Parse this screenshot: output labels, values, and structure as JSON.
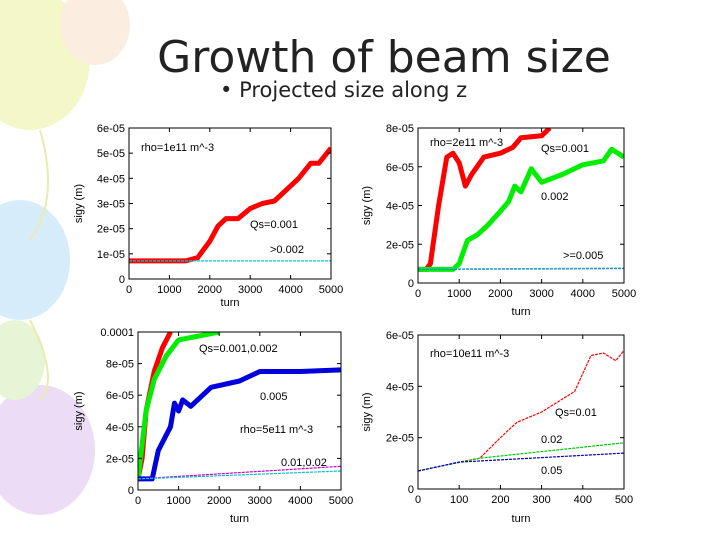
{
  "slide": {
    "title": "Growth of beam size",
    "bullet": "Projected size along z"
  },
  "chart_data": [
    {
      "type": "line",
      "xlabel": "turn",
      "ylabel": "sigy (m)",
      "xlim": [
        0,
        5000
      ],
      "ylim": [
        0,
        6e-05
      ],
      "xticks": [
        "0",
        "1000",
        "2000",
        "3000",
        "4000",
        "5000"
      ],
      "yticks": [
        "0",
        "1e-05",
        "2e-05",
        "3e-05",
        "4e-05",
        "5e-05",
        "6e-05"
      ],
      "annotations": [
        "rho=1e11 m^-3",
        "Qs=0.001",
        ">0.002"
      ],
      "series": [
        {
          "color": "#ff0000",
          "band": true,
          "points": [
            [
              0,
              7.2e-06
            ],
            [
              1400,
              7.2e-06
            ],
            [
              1700,
              8.5e-06
            ],
            [
              2000,
              1.5e-05
            ],
            [
              2200,
              2.1e-05
            ],
            [
              2400,
              2.4e-05
            ],
            [
              2700,
              2.4e-05
            ],
            [
              3000,
              2.8e-05
            ],
            [
              3300,
              3e-05
            ],
            [
              3600,
              3.1e-05
            ],
            [
              4000,
              3.7e-05
            ],
            [
              4200,
              4e-05
            ],
            [
              4500,
              4.6e-05
            ],
            [
              4700,
              4.6e-05
            ],
            [
              5000,
              5.2e-05
            ]
          ]
        },
        {
          "color": "#00c8d8",
          "band": false,
          "points": [
            [
              0,
              7.2e-06
            ],
            [
              5000,
              7.2e-06
            ]
          ]
        }
      ]
    },
    {
      "type": "line",
      "xlabel": "turn",
      "ylabel": "sigy (m)",
      "xlim": [
        0,
        5000
      ],
      "ylim": [
        0,
        8e-05
      ],
      "xticks": [
        "0",
        "1000",
        "2000",
        "3000",
        "4000",
        "5000"
      ],
      "yticks": [
        "0",
        "2e-05",
        "4e-05",
        "6e-05",
        "8e-05"
      ],
      "annotations": [
        "rho=2e11 m^-3",
        "Qs=0.001",
        "0.002",
        ">=0.005"
      ],
      "series": [
        {
          "color": "#ff0000",
          "band": true,
          "points": [
            [
              0,
              7e-06
            ],
            [
              200,
              7e-06
            ],
            [
              300,
              1e-05
            ],
            [
              500,
              4e-05
            ],
            [
              700,
              6.5e-05
            ],
            [
              850,
              6.7e-05
            ],
            [
              1000,
              6.2e-05
            ],
            [
              1150,
              5e-05
            ],
            [
              1300,
              5.6e-05
            ],
            [
              1600,
              6.5e-05
            ],
            [
              2000,
              6.7e-05
            ],
            [
              2300,
              7e-05
            ],
            [
              2500,
              7.5e-05
            ],
            [
              3000,
              7.6e-05
            ],
            [
              3200,
              8e-05
            ]
          ]
        },
        {
          "color": "#00ee00",
          "band": true,
          "points": [
            [
              0,
              7e-06
            ],
            [
              850,
              7e-06
            ],
            [
              1000,
              1e-05
            ],
            [
              1200,
              2.2e-05
            ],
            [
              1450,
              2.5e-05
            ],
            [
              1700,
              3e-05
            ],
            [
              2000,
              3.7e-05
            ],
            [
              2200,
              4.2e-05
            ],
            [
              2350,
              5e-05
            ],
            [
              2500,
              4.7e-05
            ],
            [
              2750,
              5.9e-05
            ],
            [
              3000,
              5.2e-05
            ],
            [
              3500,
              5.6e-05
            ],
            [
              4000,
              6.1e-05
            ],
            [
              4500,
              6.3e-05
            ],
            [
              4700,
              6.9e-05
            ],
            [
              5000,
              6.5e-05
            ]
          ]
        },
        {
          "color": "#8000a0",
          "band": false,
          "points": [
            [
              0,
              7e-06
            ],
            [
              5000,
              7.5e-06
            ]
          ]
        },
        {
          "color": "#00c8d8",
          "band": false,
          "points": [
            [
              0,
              7.2e-06
            ],
            [
              5000,
              7.7e-06
            ]
          ]
        }
      ]
    },
    {
      "type": "line",
      "xlabel": "turn",
      "ylabel": "sigy (m)",
      "xlim": [
        0,
        5000
      ],
      "ylim": [
        0,
        0.0001
      ],
      "xticks": [
        "0",
        "1000",
        "2000",
        "3000",
        "4000",
        "5000"
      ],
      "yticks": [
        "0",
        "2e-05",
        "4e-05",
        "6e-05",
        "8e-05",
        "0.0001"
      ],
      "annotations": [
        "Qs=0.001,0.002",
        "0.005",
        "rho=5e11 m^-3",
        "0.01,0.02"
      ],
      "series": [
        {
          "color": "#ff0000",
          "band": true,
          "points": [
            [
              0,
              7e-06
            ],
            [
              100,
              2e-05
            ],
            [
              200,
              5e-05
            ],
            [
              400,
              7.5e-05
            ],
            [
              600,
              9e-05
            ],
            [
              800,
              0.0001
            ]
          ]
        },
        {
          "color": "#00ee00",
          "band": true,
          "points": [
            [
              0,
              7e-06
            ],
            [
              200,
              5e-05
            ],
            [
              400,
              7e-05
            ],
            [
              700,
              8.5e-05
            ],
            [
              1000,
              9.5e-05
            ],
            [
              2000,
              0.0001
            ]
          ]
        },
        {
          "color": "#0000dd",
          "band": true,
          "points": [
            [
              0,
              7e-06
            ],
            [
              350,
              7e-06
            ],
            [
              500,
              2.5e-05
            ],
            [
              800,
              4e-05
            ],
            [
              900,
              5.5e-05
            ],
            [
              1000,
              5e-05
            ],
            [
              1100,
              5.7e-05
            ],
            [
              1300,
              5.3e-05
            ],
            [
              1800,
              6.5e-05
            ],
            [
              2500,
              6.9e-05
            ],
            [
              3000,
              7.5e-05
            ],
            [
              4000,
              7.5e-05
            ],
            [
              5000,
              7.6e-05
            ]
          ]
        },
        {
          "color": "#d000d0",
          "band": false,
          "points": [
            [
              0,
              7e-06
            ],
            [
              5000,
              1.5e-05
            ]
          ]
        },
        {
          "color": "#00c8d8",
          "band": false,
          "points": [
            [
              0,
              7e-06
            ],
            [
              5000,
              1.2e-05
            ]
          ]
        }
      ]
    },
    {
      "type": "line",
      "xlabel": "turn",
      "ylabel": "sigy (m)",
      "xlim": [
        0,
        500
      ],
      "ylim": [
        0,
        6e-05
      ],
      "xticks": [
        "0",
        "100",
        "200",
        "300",
        "400",
        "500"
      ],
      "yticks": [
        "0",
        "2e-05",
        "4e-05",
        "6e-05"
      ],
      "annotations": [
        "rho=10e11 m^-3",
        "Qs=0.01",
        "0.02",
        "0.05"
      ],
      "series": [
        {
          "color": "#ff0000",
          "band": false,
          "points": [
            [
              0,
              7e-06
            ],
            [
              100,
              1.05e-05
            ],
            [
              150,
              1.2e-05
            ],
            [
              200,
              2e-05
            ],
            [
              240,
              2.6e-05
            ],
            [
              300,
              3e-05
            ],
            [
              380,
              3.8e-05
            ],
            [
              420,
              5.2e-05
            ],
            [
              450,
              5.3e-05
            ],
            [
              480,
              5e-05
            ],
            [
              500,
              5.4e-05
            ]
          ]
        },
        {
          "color": "#00cc00",
          "band": false,
          "points": [
            [
              0,
              7e-06
            ],
            [
              150,
              1.2e-05
            ],
            [
              500,
              1.8e-05
            ]
          ]
        },
        {
          "color": "#0000cc",
          "band": false,
          "points": [
            [
              0,
              7e-06
            ],
            [
              100,
              1.05e-05
            ],
            [
              500,
              1.4e-05
            ]
          ]
        }
      ]
    }
  ]
}
